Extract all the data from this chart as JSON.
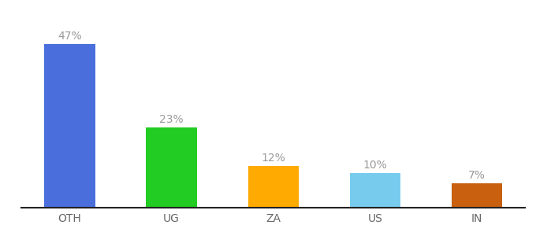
{
  "categories": [
    "OTH",
    "UG",
    "ZA",
    "US",
    "IN"
  ],
  "values": [
    47,
    23,
    12,
    10,
    7
  ],
  "labels": [
    "47%",
    "23%",
    "12%",
    "10%",
    "7%"
  ],
  "bar_colors": [
    "#4a6fdc",
    "#22cc22",
    "#ffaa00",
    "#77ccee",
    "#c86010"
  ],
  "background_color": "#ffffff",
  "ylim": [
    0,
    53
  ],
  "label_fontsize": 10,
  "tick_fontsize": 10,
  "label_color": "#999999",
  "tick_color": "#666666",
  "bar_width": 0.5
}
